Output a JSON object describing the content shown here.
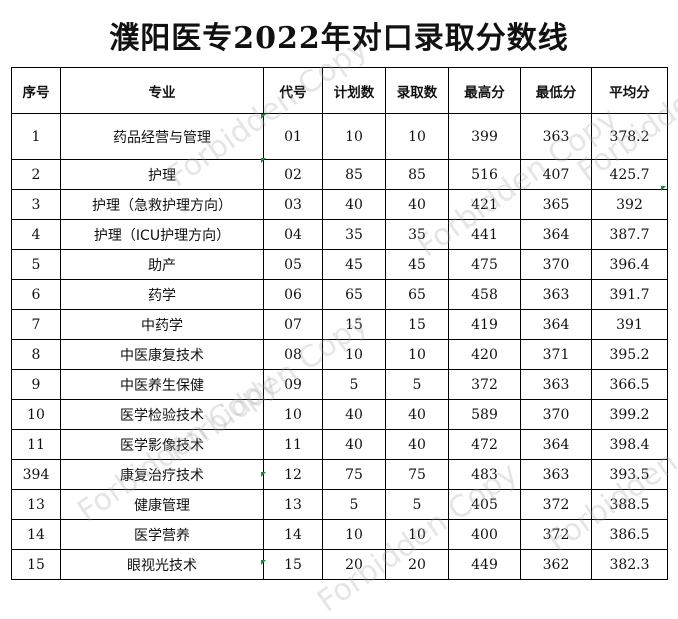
{
  "title": "濮阳医专2022年对口录取分数线",
  "watermark": "Forbidden Copy",
  "headers": {
    "index": "序号",
    "major": "专业",
    "code": "代号",
    "plan": "计划数",
    "admitted": "录取数",
    "max": "最高分",
    "min": "最低分",
    "avg": "平均分"
  },
  "rows": [
    {
      "index": "1",
      "major": "药品经营与管理",
      "code": "01",
      "plan": "10",
      "admitted": "10",
      "max": "399",
      "min": "363",
      "avg": "378.2"
    },
    {
      "index": "2",
      "major": "护理",
      "code": "02",
      "plan": "85",
      "admitted": "85",
      "max": "516",
      "min": "407",
      "avg": "425.7"
    },
    {
      "index": "3",
      "major": "护理（急救护理方向）",
      "code": "03",
      "plan": "40",
      "admitted": "40",
      "max": "421",
      "min": "365",
      "avg": "392"
    },
    {
      "index": "4",
      "major": "护理（ICU护理方向）",
      "code": "04",
      "plan": "35",
      "admitted": "35",
      "max": "441",
      "min": "364",
      "avg": "387.7"
    },
    {
      "index": "5",
      "major": "助产",
      "code": "05",
      "plan": "45",
      "admitted": "45",
      "max": "475",
      "min": "370",
      "avg": "396.4"
    },
    {
      "index": "6",
      "major": "药学",
      "code": "06",
      "plan": "65",
      "admitted": "65",
      "max": "458",
      "min": "363",
      "avg": "391.7"
    },
    {
      "index": "7",
      "major": "中药学",
      "code": "07",
      "plan": "15",
      "admitted": "15",
      "max": "419",
      "min": "364",
      "avg": "391"
    },
    {
      "index": "8",
      "major": "中医康复技术",
      "code": "08",
      "plan": "10",
      "admitted": "10",
      "max": "420",
      "min": "371",
      "avg": "395.2"
    },
    {
      "index": "9",
      "major": "中医养生保健",
      "code": "09",
      "plan": "5",
      "admitted": "5",
      "max": "372",
      "min": "363",
      "avg": "366.5"
    },
    {
      "index": "10",
      "major": "医学检验技术",
      "code": "10",
      "plan": "40",
      "admitted": "40",
      "max": "589",
      "min": "370",
      "avg": "399.2"
    },
    {
      "index": "11",
      "major": "医学影像技术",
      "code": "11",
      "plan": "40",
      "admitted": "40",
      "max": "472",
      "min": "364",
      "avg": "398.4"
    },
    {
      "index": "394",
      "major": "康复治疗技术",
      "code": "12",
      "plan": "75",
      "admitted": "75",
      "max": "483",
      "min": "363",
      "avg": "393.5"
    },
    {
      "index": "13",
      "major": "健康管理",
      "code": "13",
      "plan": "5",
      "admitted": "5",
      "max": "405",
      "min": "372",
      "avg": "388.5"
    },
    {
      "index": "14",
      "major": "医学营养",
      "code": "14",
      "plan": "10",
      "admitted": "10",
      "max": "400",
      "min": "372",
      "avg": "386.5"
    },
    {
      "index": "15",
      "major": "眼视光技术",
      "code": "15",
      "plan": "20",
      "admitted": "20",
      "max": "449",
      "min": "362",
      "avg": "382.3"
    }
  ],
  "colors": {
    "grid": "#000000",
    "text": "#111111",
    "cell_marker": "#1f8a3c",
    "watermark": "#a0a0a0"
  }
}
